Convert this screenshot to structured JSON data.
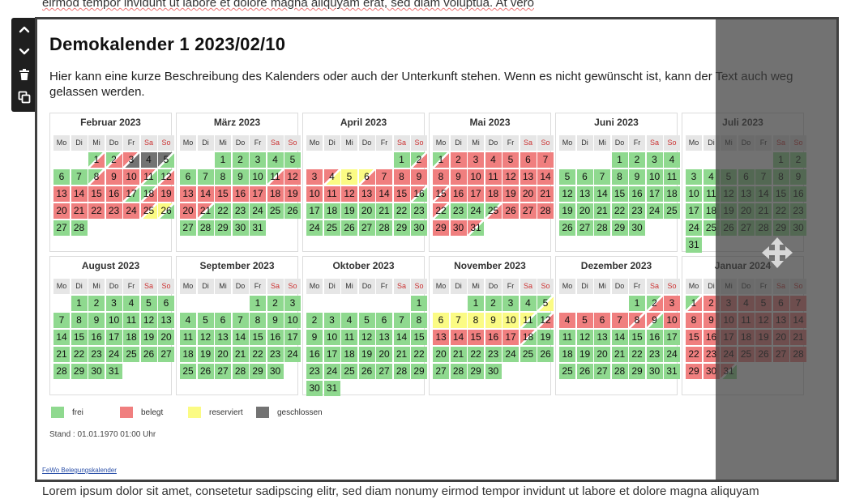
{
  "background_text": {
    "top": "eirmod tempor invidunt ut labore et dolore magna aliquyam erat, sed diam voluptua. At vero",
    "bottom": "Lorem ipsum dolor sit amet, consetetur sadipscing elitr, sed diam nonumy eirmod tempor invidunt ut labore et dolore magna aliquyam"
  },
  "toolbar": {
    "move_up_icon": "chevron-up-icon",
    "move_down_icon": "chevron-down-icon",
    "delete_icon": "trash-icon",
    "duplicate_icon": "copy-icon"
  },
  "calendar": {
    "title": "Demokalender 1 2023/02/10",
    "description": "Hier kann eine kurze Beschreibung des Kalenders oder auch der Unterkunft stehen. Wenn es nicht gewünscht ist, kann der Text auch weg gelassen werden.",
    "weekdays": [
      "Mo",
      "Di",
      "Mi",
      "Do",
      "Fr",
      "Sa",
      "So"
    ],
    "months": [
      {
        "name": "Februar 2023",
        "offset": 2,
        "days": 28,
        "days_status": {
          "1": "frei>belegt",
          "2": "frei>belegt",
          "3": "belegt>geschlossen",
          "4": "geschlossen",
          "5": "geschlossen>frei",
          "6": "frei",
          "7": "frei",
          "8": "frei>belegt",
          "9": "belegt",
          "10": "belegt",
          "11": "belegt>frei",
          "12": "frei>belegt",
          "13": "belegt",
          "14": "belegt",
          "15": "belegt",
          "16": "belegt",
          "17": "belegt>frei",
          "18": "frei>belegt",
          "19": "belegt",
          "20": "belegt",
          "21": "belegt",
          "22": "belegt",
          "23": "belegt",
          "24": "belegt",
          "25": "belegt>reserviert",
          "26": "reserviert>frei"
        }
      },
      {
        "name": "März 2023",
        "offset": 2,
        "days": 31,
        "days_status": {
          "11": "frei>belegt",
          "12": "belegt",
          "13": "belegt",
          "14": "belegt",
          "15": "belegt",
          "16": "belegt",
          "17": "belegt",
          "18": "belegt",
          "19": "belegt",
          "20": "belegt",
          "21": "belegt>frei"
        }
      },
      {
        "name": "April 2023",
        "offset": 5,
        "days": 30,
        "days_status": {
          "2": "frei>belegt",
          "3": "belegt",
          "4": "belegt>reserviert",
          "5": "reserviert",
          "6": "reserviert>belegt",
          "7": "belegt",
          "8": "belegt",
          "9": "belegt",
          "10": "belegt",
          "11": "belegt",
          "12": "belegt",
          "13": "belegt",
          "14": "belegt",
          "15": "belegt",
          "16": "belegt>frei"
        }
      },
      {
        "name": "Mai 2023",
        "offset": 0,
        "days": 31,
        "days_status": {
          "1": "frei>belegt",
          "2": "belegt",
          "3": "belegt",
          "4": "belegt",
          "5": "belegt",
          "6": "belegt",
          "7": "belegt",
          "8": "belegt",
          "9": "belegt",
          "10": "belegt",
          "11": "belegt",
          "12": "belegt",
          "13": "belegt",
          "14": "belegt",
          "15": "belegt>belegt",
          "16": "belegt",
          "17": "belegt",
          "18": "belegt",
          "19": "belegt",
          "20": "belegt",
          "21": "belegt",
          "22": "belegt>frei",
          "25": "frei>belegt",
          "26": "belegt",
          "27": "belegt",
          "28": "belegt",
          "29": "belegt",
          "30": "belegt",
          "31": "belegt>frei"
        }
      },
      {
        "name": "Juni 2023",
        "offset": 3,
        "days": 30,
        "days_status": {}
      },
      {
        "name": "Juli 2023",
        "offset": 5,
        "days": 31,
        "days_status": {}
      },
      {
        "name": "August 2023",
        "offset": 1,
        "days": 31,
        "days_status": {}
      },
      {
        "name": "September 2023",
        "offset": 4,
        "days": 30,
        "days_status": {}
      },
      {
        "name": "Oktober 2023",
        "offset": 6,
        "days": 31,
        "days_status": {}
      },
      {
        "name": "November 2023",
        "offset": 2,
        "days": 30,
        "days_status": {
          "5": "frei>reserviert",
          "6": "reserviert",
          "7": "reserviert",
          "8": "reserviert",
          "9": "reserviert",
          "10": "reserviert",
          "11": "reserviert>frei",
          "12": "frei>belegt",
          "13": "belegt",
          "14": "belegt",
          "15": "belegt",
          "16": "belegt",
          "17": "belegt",
          "18": "belegt>frei"
        }
      },
      {
        "name": "Dezember 2023",
        "offset": 4,
        "days": 31,
        "days_status": {
          "2": "frei>belegt",
          "3": "belegt",
          "4": "belegt",
          "5": "belegt",
          "6": "belegt",
          "7": "belegt",
          "8": "belegt>belegt",
          "9": "belegt>frei",
          "10": "belegt"
        }
      },
      {
        "name": "Januar 2024",
        "offset": 0,
        "days": 31,
        "days_status": {
          "1": "frei>belegt",
          "2": "belegt",
          "3": "belegt",
          "4": "belegt",
          "5": "belegt",
          "6": "belegt",
          "7": "belegt",
          "8": "belegt",
          "9": "belegt",
          "10": "belegt",
          "11": "belegt",
          "12": "belegt",
          "13": "belegt",
          "14": "belegt",
          "15": "belegt",
          "16": "belegt",
          "17": "belegt",
          "18": "belegt",
          "19": "belegt",
          "20": "belegt",
          "21": "belegt",
          "22": "belegt",
          "23": "belegt",
          "24": "belegt",
          "25": "belegt",
          "26": "belegt",
          "27": "belegt",
          "28": "belegt",
          "29": "belegt",
          "30": "belegt",
          "31": "belegt>frei"
        }
      }
    ],
    "legend": [
      {
        "label": "frei",
        "color": "#8fd98f"
      },
      {
        "label": "belegt",
        "color": "#f07f7f"
      },
      {
        "label": "reserviert",
        "color": "#fbfb84"
      },
      {
        "label": "geschlossen",
        "color": "#737373"
      }
    ],
    "status_colors": {
      "frei": "#8fd98f",
      "belegt": "#f07f7f",
      "reserviert": "#fbfb84",
      "geschlossen": "#737373"
    },
    "stand": "Stand : 01.01.1970 01:00 Uhr",
    "footer_link": "FeWo Belegungskalender"
  },
  "move_handle_icon": "move-arrows-icon"
}
